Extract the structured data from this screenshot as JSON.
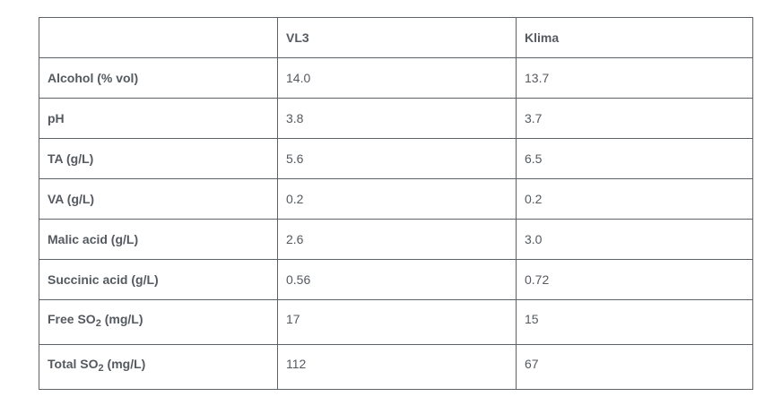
{
  "table": {
    "headers": [
      "",
      "VL3",
      "Klima"
    ],
    "rows": [
      {
        "label": "Alcohol (% vol)",
        "vl3": "14.0",
        "klima": "13.7"
      },
      {
        "label": "pH",
        "vl3": "3.8",
        "klima": "3.7"
      },
      {
        "label": "TA (g/L)",
        "vl3": "5.6",
        "klima": "6.5"
      },
      {
        "label": "VA (g/L)",
        "vl3": "0.2",
        "klima": "0.2"
      },
      {
        "label": "Malic acid (g/L)",
        "vl3": "2.6",
        "klima": "3.0"
      },
      {
        "label": "Succinic acid (g/L)",
        "vl3": "0.56",
        "klima": "0.72"
      }
    ],
    "so2_rows": [
      {
        "label_pre": "Free SO",
        "sub": "2",
        "label_post": " (mg/L)",
        "vl3": "17",
        "klima": "15"
      },
      {
        "label_pre": "Total SO",
        "sub": "2",
        "label_post": " (mg/L)",
        "vl3": "112",
        "klima": "67"
      }
    ]
  }
}
